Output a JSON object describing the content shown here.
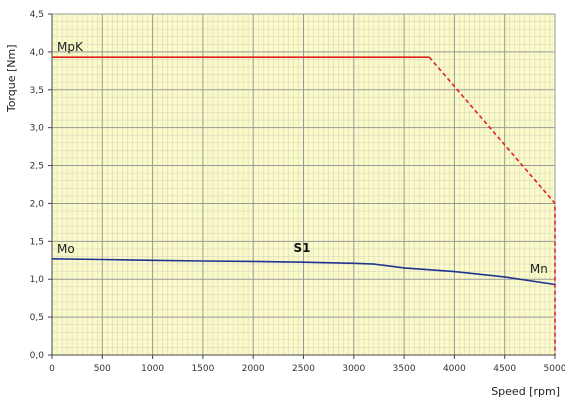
{
  "chart_data": {
    "type": "line",
    "xlabel": "Speed [rpm]",
    "ylabel": "Torque [Nm]",
    "xlim": [
      0,
      5000
    ],
    "ylim": [
      0,
      4.5
    ],
    "x_ticks": [
      "0",
      "500",
      "1000",
      "1500",
      "2000",
      "2500",
      "3000",
      "3500",
      "4000",
      "4500",
      "5000"
    ],
    "y_ticks": [
      "0,0",
      "0,5",
      "1,0",
      "1,5",
      "2,0",
      "2,5",
      "3,0",
      "3,5",
      "4,0",
      "4,5"
    ],
    "grid": true,
    "background_color": "#fafac8",
    "grid_color": "#b9b9b9",
    "series": [
      {
        "name": "MpK",
        "color": "#e02020",
        "solid": {
          "x": [
            0,
            3750
          ],
          "y": [
            3.93,
            3.93
          ]
        },
        "dashed": {
          "x": [
            3750,
            5000,
            5000
          ],
          "y": [
            3.93,
            2.0,
            0.0
          ]
        }
      },
      {
        "name": "Mo",
        "color": "#1f3590",
        "solid": {
          "x": [
            0,
            500,
            1000,
            1500,
            2000,
            2500,
            3000,
            3200,
            3500,
            4000,
            4500,
            5000
          ],
          "y": [
            1.27,
            1.26,
            1.25,
            1.24,
            1.235,
            1.225,
            1.21,
            1.2,
            1.15,
            1.1,
            1.03,
            0.93
          ]
        }
      }
    ],
    "annotations": [
      {
        "text": "S1",
        "x": 2400,
        "y": 1.36,
        "bold": true
      },
      {
        "text": "Mn",
        "x": 4750,
        "y": 1.08,
        "bold": false
      }
    ]
  }
}
